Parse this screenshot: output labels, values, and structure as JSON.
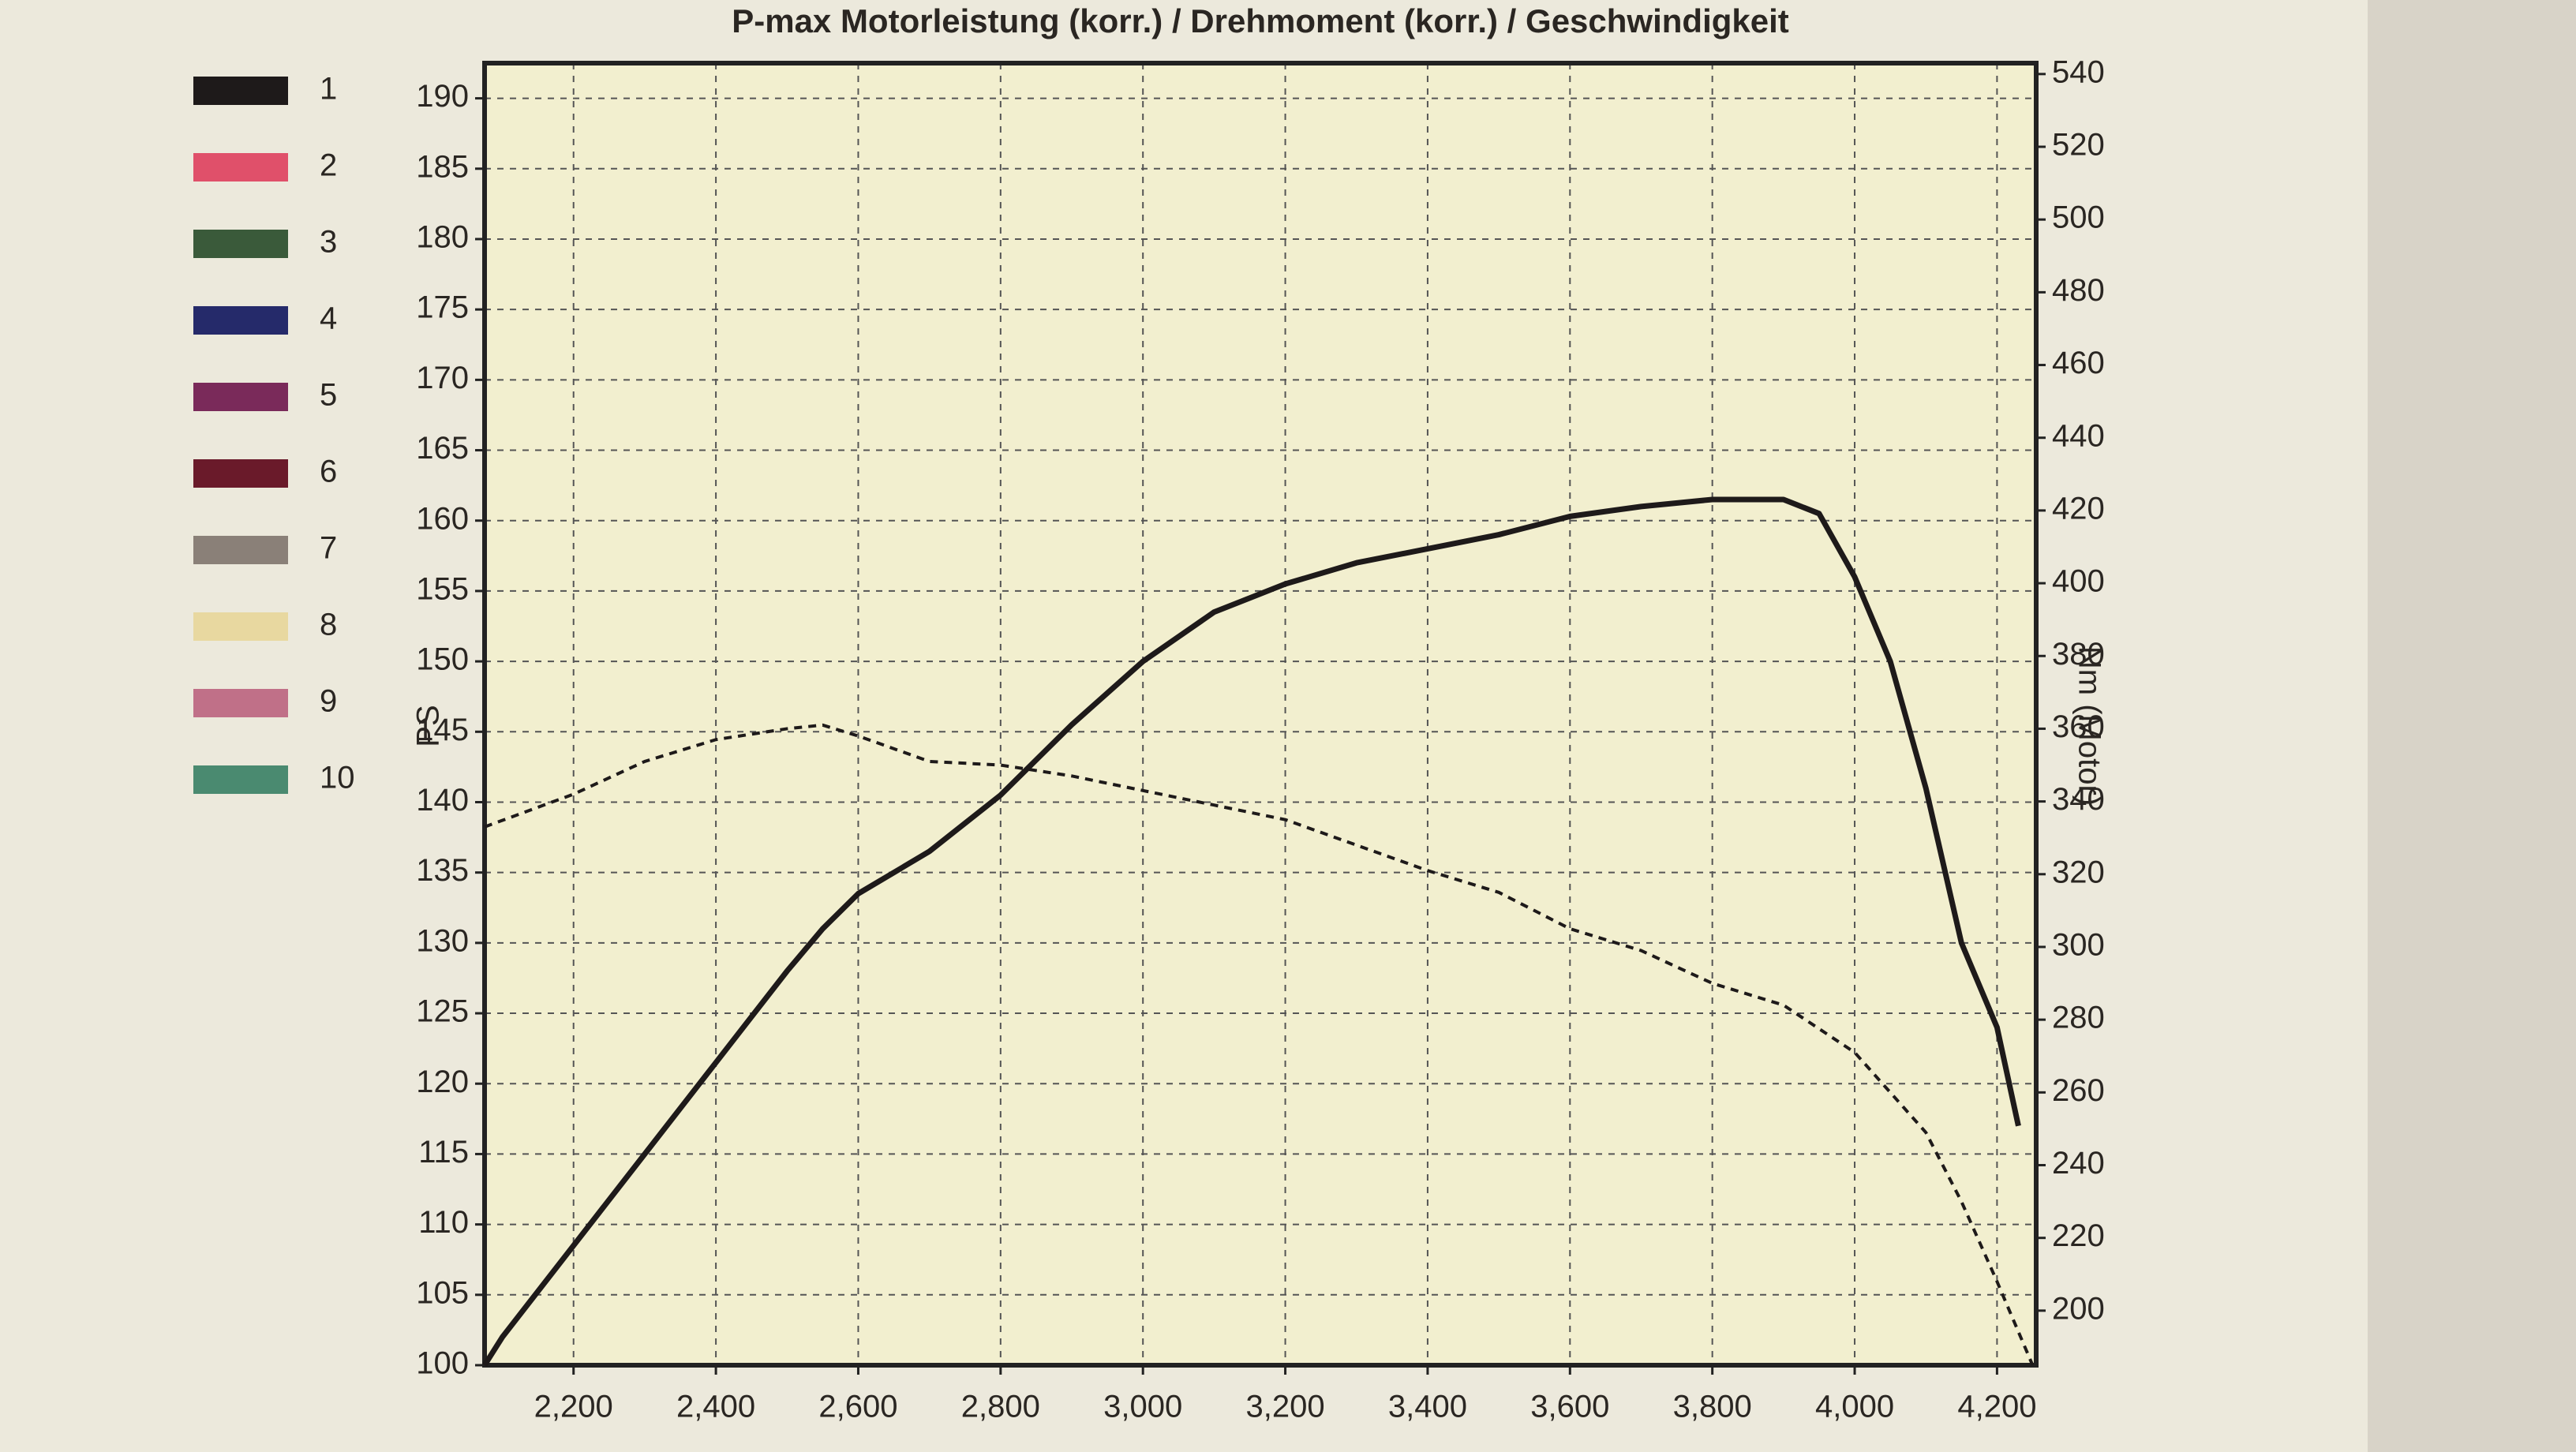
{
  "chart_data": {
    "type": "line",
    "title": "P-max Motorleistung (korr.) / Drehmoment (korr.) / Geschwindigkeit",
    "ylabel": "PS",
    "y2label": "Nm (Motor)",
    "xlim": [
      2075,
      4255
    ],
    "ylim": [
      100,
      192.5
    ],
    "y2lim": [
      185,
      543
    ],
    "xticks": [
      {
        "value": 2200,
        "label": "2,200"
      },
      {
        "value": 2400,
        "label": "2,400"
      },
      {
        "value": 2600,
        "label": "2,600"
      },
      {
        "value": 2800,
        "label": "2,800"
      },
      {
        "value": 3000,
        "label": "3,000"
      },
      {
        "value": 3200,
        "label": "3,200"
      },
      {
        "value": 3400,
        "label": "3,400"
      },
      {
        "value": 3600,
        "label": "3,600"
      },
      {
        "value": 3800,
        "label": "3,800"
      },
      {
        "value": 4000,
        "label": "4,000"
      },
      {
        "value": 4200,
        "label": "4,200"
      }
    ],
    "yticks": [
      100,
      105,
      110,
      115,
      120,
      125,
      130,
      135,
      140,
      145,
      150,
      155,
      160,
      165,
      170,
      175,
      180,
      185,
      190
    ],
    "y2ticks": [
      200,
      220,
      240,
      260,
      280,
      300,
      320,
      340,
      360,
      380,
      400,
      420,
      440,
      460,
      480,
      500,
      520,
      540
    ],
    "grid": true,
    "series": [
      {
        "color": "#1e1a1a",
        "dash": false,
        "x": [
          2075,
          2100,
          2200,
          2300,
          2400,
          2500,
          2550,
          2600,
          2700,
          2800,
          2900,
          3000,
          3100,
          3200,
          3300,
          3400,
          3500,
          3600,
          3700,
          3800,
          3900,
          3950,
          4000,
          4050,
          4100,
          4150,
          4200,
          4230
        ],
        "values": [
          100,
          102,
          108.5,
          115,
          121.5,
          128,
          131,
          133.5,
          136.5,
          140.5,
          145.5,
          150,
          153.5,
          155.5,
          157,
          158,
          159,
          160.3,
          161,
          161.5,
          161.5,
          160.5,
          156,
          150,
          141,
          130,
          124,
          117
        ]
      },
      {
        "color": "#1e1a1a",
        "dash": true,
        "axis": "y2",
        "x": [
          2075,
          2200,
          2300,
          2400,
          2500,
          2550,
          2600,
          2700,
          2800,
          2900,
          3000,
          3100,
          3200,
          3300,
          3400,
          3500,
          3600,
          3700,
          3800,
          3900,
          4000,
          4100,
          4150,
          4200,
          4250
        ],
        "values": [
          333,
          342,
          351,
          357,
          360,
          361,
          358,
          351,
          350,
          347,
          343,
          339,
          335,
          328,
          321,
          315,
          305,
          299,
          290,
          284,
          271,
          249,
          230,
          208,
          185
        ]
      }
    ],
    "legend": [
      {
        "label": "1",
        "color": "#1e1a1a"
      },
      {
        "label": "2",
        "color": "#e0506a"
      },
      {
        "label": "3",
        "color": "#3a5a3a"
      },
      {
        "label": "4",
        "color": "#252a6a"
      },
      {
        "label": "5",
        "color": "#7a2a5a"
      },
      {
        "label": "6",
        "color": "#6a1a2a"
      },
      {
        "label": "7",
        "color": "#8a8078"
      },
      {
        "label": "8",
        "color": "#e8d8a0"
      },
      {
        "label": "9",
        "color": "#c07088"
      },
      {
        "label": "10",
        "color": "#4a8a70"
      }
    ]
  }
}
